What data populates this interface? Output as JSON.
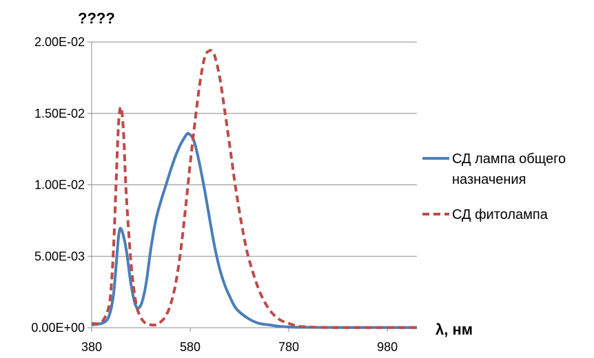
{
  "chart_data": {
    "type": "line",
    "ylabel": "????",
    "xlabel": "λ, нм",
    "xlim": [
      380,
      1040
    ],
    "ylim": [
      0,
      0.02
    ],
    "x_ticks": [
      380,
      580,
      780,
      980
    ],
    "x_tick_labels": [
      "380",
      "580",
      "780",
      "980"
    ],
    "y_ticks": [
      0,
      0.005,
      0.01,
      0.015,
      0.02
    ],
    "y_tick_labels": [
      "0.00E+00",
      "5.00E-03",
      "1.00E-02",
      "1.50E-02",
      "2.00E-02"
    ],
    "grid": "horizontal",
    "legend_position": "right",
    "series": [
      {
        "name": "СД лампа общего назначения",
        "legend_lines": [
          "СД лампа общего",
          "назначения"
        ],
        "color": "#4a7ebb",
        "style": "solid",
        "x": [
          380,
          400,
          410,
          415,
          420,
          425,
          430,
          435,
          440,
          450,
          460,
          470,
          480,
          490,
          500,
          510,
          520,
          530,
          540,
          550,
          560,
          570,
          575,
          580,
          585,
          590,
          595,
          600,
          610,
          620,
          630,
          640,
          650,
          660,
          670,
          680,
          700,
          720,
          740,
          760,
          780,
          800,
          850,
          900,
          950,
          1000,
          1040
        ],
        "y": [
          0.0002,
          0.0003,
          0.0005,
          0.0008,
          0.0014,
          0.0025,
          0.0045,
          0.0065,
          0.0069,
          0.0055,
          0.003,
          0.0015,
          0.0016,
          0.003,
          0.0055,
          0.0075,
          0.0088,
          0.0099,
          0.011,
          0.012,
          0.0128,
          0.0134,
          0.0136,
          0.0135,
          0.0133,
          0.0128,
          0.0121,
          0.0113,
          0.0095,
          0.0075,
          0.0056,
          0.0041,
          0.003,
          0.0022,
          0.0015,
          0.0011,
          0.0006,
          0.0003,
          0.0002,
          0.0001,
          5e-05,
          3e-05,
          2e-05,
          1e-05,
          1e-05,
          1e-05,
          1e-05
        ]
      },
      {
        "name": "СД фитолампа",
        "legend_lines": [
          "СД фитолампа"
        ],
        "color": "#be4b48",
        "style": "dashed",
        "x": [
          380,
          395,
          405,
          415,
          420,
          425,
          430,
          435,
          440,
          445,
          450,
          460,
          470,
          480,
          490,
          500,
          510,
          520,
          530,
          540,
          550,
          560,
          570,
          580,
          590,
          600,
          610,
          620,
          625,
          630,
          640,
          650,
          660,
          670,
          680,
          690,
          700,
          720,
          740,
          760,
          780,
          800,
          820,
          850,
          900,
          950,
          1000,
          1040
        ],
        "y": [
          0.0003,
          0.0003,
          0.0006,
          0.0015,
          0.003,
          0.006,
          0.0105,
          0.0145,
          0.0154,
          0.0135,
          0.0095,
          0.0045,
          0.0017,
          0.0007,
          0.0003,
          0.0002,
          0.0002,
          0.0004,
          0.0008,
          0.0016,
          0.003,
          0.0052,
          0.0082,
          0.0115,
          0.0145,
          0.0172,
          0.019,
          0.0194,
          0.0193,
          0.019,
          0.0175,
          0.0152,
          0.0128,
          0.0103,
          0.0081,
          0.0062,
          0.0047,
          0.0026,
          0.0013,
          0.0006,
          0.0003,
          0.0001,
          5e-05,
          2e-05,
          1e-05,
          1e-05,
          1e-05,
          1e-05
        ]
      }
    ]
  }
}
